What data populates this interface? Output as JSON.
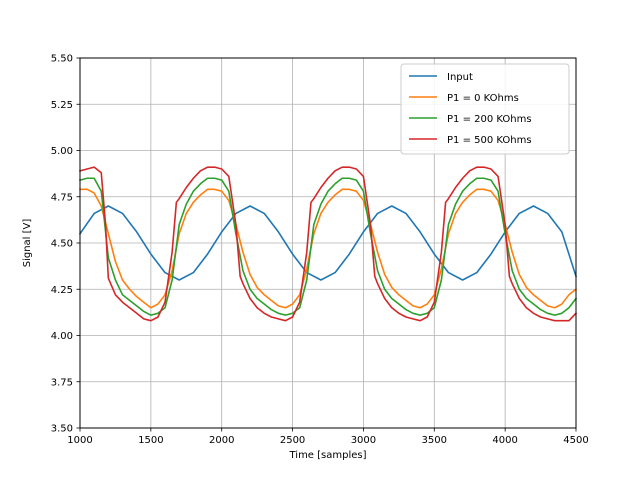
{
  "chart_data": {
    "type": "line",
    "title": "",
    "xlabel": "Time [samples]",
    "ylabel": "Signal [V]",
    "xlim": [
      1000,
      4500
    ],
    "ylim": [
      3.5,
      5.5
    ],
    "xticks": [
      1000,
      1500,
      2000,
      2500,
      3000,
      3500,
      4000,
      4500
    ],
    "xtick_labels": [
      "1000",
      "1500",
      "2000",
      "2500",
      "3000",
      "3500",
      "4000",
      "4500"
    ],
    "yticks": [
      3.5,
      3.75,
      4.0,
      4.25,
      4.5,
      4.75,
      5.0,
      5.25,
      5.5
    ],
    "ytick_labels": [
      "3.50",
      "3.75",
      "4.00",
      "4.25",
      "4.50",
      "4.75",
      "5.00",
      "5.25",
      "5.50"
    ],
    "grid": true,
    "legend_position": "top-right",
    "series": [
      {
        "name": "Input",
        "color": "#1f77b4",
        "x": [
          1000,
          1100,
          1200,
          1300,
          1400,
          1500,
          1600,
          1700,
          1800,
          1900,
          2000,
          2100,
          2200,
          2300,
          2400,
          2500,
          2600,
          2700,
          2800,
          2900,
          3000,
          3100,
          3200,
          3300,
          3400,
          3500,
          3600,
          3700,
          3800,
          3900,
          4000,
          4100,
          4200,
          4300,
          4400,
          4500
        ],
        "y": [
          4.55,
          4.66,
          4.7,
          4.66,
          4.56,
          4.44,
          4.34,
          4.3,
          4.34,
          4.44,
          4.56,
          4.66,
          4.7,
          4.66,
          4.56,
          4.44,
          4.34,
          4.3,
          4.34,
          4.44,
          4.56,
          4.66,
          4.7,
          4.66,
          4.56,
          4.44,
          4.34,
          4.3,
          4.34,
          4.44,
          4.56,
          4.66,
          4.7,
          4.66,
          4.56,
          4.32
        ]
      },
      {
        "name": "P1 = 0 KOhms",
        "color": "#ff7f0e",
        "x": [
          1000,
          1050,
          1100,
          1150,
          1200,
          1250,
          1300,
          1350,
          1400,
          1450,
          1500,
          1550,
          1600,
          1650,
          1700,
          1750,
          1800,
          1850,
          1900,
          1950,
          2000,
          2050,
          2100,
          2150,
          2200,
          2250,
          2300,
          2350,
          2400,
          2450,
          2500,
          2550,
          2600,
          2650,
          2700,
          2750,
          2800,
          2850,
          2900,
          2950,
          3000,
          3050,
          3100,
          3150,
          3200,
          3250,
          3300,
          3350,
          3400,
          3450,
          3500,
          3550,
          3600,
          3650,
          3700,
          3750,
          3800,
          3850,
          3900,
          3950,
          4000,
          4050,
          4100,
          4150,
          4200,
          4250,
          4300,
          4350,
          4400,
          4450,
          4500
        ],
        "y": [
          4.79,
          4.79,
          4.77,
          4.7,
          4.55,
          4.4,
          4.3,
          4.25,
          4.21,
          4.18,
          4.15,
          4.17,
          4.22,
          4.35,
          4.55,
          4.66,
          4.72,
          4.76,
          4.79,
          4.79,
          4.78,
          4.73,
          4.6,
          4.45,
          4.33,
          4.26,
          4.22,
          4.19,
          4.16,
          4.15,
          4.17,
          4.22,
          4.36,
          4.55,
          4.66,
          4.72,
          4.76,
          4.79,
          4.79,
          4.78,
          4.73,
          4.6,
          4.45,
          4.33,
          4.26,
          4.22,
          4.19,
          4.16,
          4.15,
          4.17,
          4.22,
          4.36,
          4.55,
          4.66,
          4.72,
          4.76,
          4.79,
          4.79,
          4.78,
          4.73,
          4.6,
          4.45,
          4.33,
          4.26,
          4.22,
          4.19,
          4.16,
          4.15,
          4.17,
          4.22,
          4.25
        ]
      },
      {
        "name": "P1 = 200 KOhms",
        "color": "#2ca02c",
        "x": [
          1000,
          1050,
          1100,
          1150,
          1200,
          1250,
          1300,
          1350,
          1400,
          1450,
          1500,
          1550,
          1600,
          1650,
          1700,
          1750,
          1800,
          1850,
          1900,
          1950,
          2000,
          2050,
          2100,
          2150,
          2200,
          2250,
          2300,
          2350,
          2400,
          2450,
          2500,
          2550,
          2600,
          2650,
          2700,
          2750,
          2800,
          2850,
          2900,
          2950,
          3000,
          3050,
          3100,
          3150,
          3200,
          3250,
          3300,
          3350,
          3400,
          3450,
          3500,
          3550,
          3600,
          3650,
          3700,
          3750,
          3800,
          3850,
          3900,
          3950,
          4000,
          4050,
          4100,
          4150,
          4200,
          4250,
          4300,
          4350,
          4400,
          4450,
          4500
        ],
        "y": [
          4.84,
          4.85,
          4.85,
          4.78,
          4.42,
          4.3,
          4.22,
          4.19,
          4.16,
          4.13,
          4.11,
          4.12,
          4.15,
          4.3,
          4.6,
          4.71,
          4.78,
          4.82,
          4.85,
          4.85,
          4.84,
          4.78,
          4.55,
          4.35,
          4.25,
          4.2,
          4.17,
          4.14,
          4.12,
          4.11,
          4.12,
          4.15,
          4.3,
          4.6,
          4.71,
          4.78,
          4.82,
          4.85,
          4.85,
          4.84,
          4.78,
          4.55,
          4.35,
          4.25,
          4.2,
          4.17,
          4.14,
          4.12,
          4.11,
          4.12,
          4.15,
          4.3,
          4.6,
          4.71,
          4.78,
          4.82,
          4.85,
          4.85,
          4.84,
          4.78,
          4.55,
          4.35,
          4.25,
          4.2,
          4.17,
          4.14,
          4.12,
          4.11,
          4.12,
          4.15,
          4.2
        ]
      },
      {
        "name": "P1 = 500 KOhms",
        "color": "#d62728",
        "x": [
          1000,
          1050,
          1100,
          1150,
          1180,
          1200,
          1250,
          1300,
          1350,
          1400,
          1450,
          1500,
          1550,
          1600,
          1650,
          1680,
          1700,
          1750,
          1800,
          1850,
          1900,
          1950,
          2000,
          2050,
          2100,
          2130,
          2150,
          2200,
          2250,
          2300,
          2350,
          2400,
          2450,
          2500,
          2550,
          2600,
          2630,
          2650,
          2700,
          2750,
          2800,
          2850,
          2900,
          2950,
          3000,
          3050,
          3080,
          3100,
          3150,
          3200,
          3250,
          3300,
          3350,
          3400,
          3450,
          3500,
          3550,
          3580,
          3600,
          3650,
          3700,
          3750,
          3800,
          3850,
          3900,
          3950,
          4000,
          4030,
          4050,
          4100,
          4150,
          4200,
          4250,
          4300,
          4350,
          4400,
          4450,
          4500
        ],
        "y": [
          4.89,
          4.9,
          4.91,
          4.88,
          4.6,
          4.31,
          4.22,
          4.18,
          4.15,
          4.12,
          4.09,
          4.08,
          4.1,
          4.18,
          4.45,
          4.72,
          4.74,
          4.8,
          4.85,
          4.89,
          4.91,
          4.91,
          4.9,
          4.86,
          4.6,
          4.32,
          4.28,
          4.2,
          4.15,
          4.12,
          4.1,
          4.09,
          4.08,
          4.1,
          4.18,
          4.45,
          4.72,
          4.74,
          4.8,
          4.85,
          4.89,
          4.91,
          4.91,
          4.9,
          4.86,
          4.6,
          4.32,
          4.28,
          4.2,
          4.15,
          4.12,
          4.1,
          4.09,
          4.08,
          4.1,
          4.18,
          4.45,
          4.72,
          4.74,
          4.8,
          4.85,
          4.89,
          4.91,
          4.91,
          4.9,
          4.86,
          4.6,
          4.32,
          4.28,
          4.2,
          4.15,
          4.12,
          4.1,
          4.09,
          4.08,
          4.08,
          4.08,
          4.12
        ]
      }
    ]
  }
}
